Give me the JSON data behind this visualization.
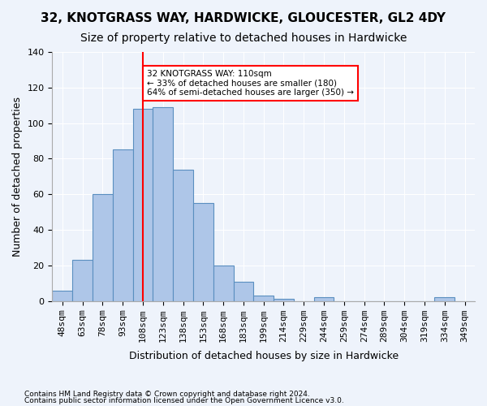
{
  "title1": "32, KNOTGRASS WAY, HARDWICKE, GLOUCESTER, GL2 4DY",
  "title2": "Size of property relative to detached houses in Hardwicke",
  "xlabel": "Distribution of detached houses by size in Hardwicke",
  "ylabel": "Number of detached properties",
  "bar_labels": [
    "48sqm",
    "63sqm",
    "78sqm",
    "93sqm",
    "108sqm",
    "123sqm",
    "138sqm",
    "153sqm",
    "168sqm",
    "183sqm",
    "199sqm",
    "214sqm",
    "229sqm",
    "244sqm",
    "259sqm",
    "274sqm",
    "289sqm",
    "304sqm",
    "319sqm",
    "334sqm",
    "349sqm"
  ],
  "bar_values": [
    6,
    23,
    60,
    85,
    108,
    109,
    74,
    55,
    20,
    11,
    3,
    1,
    0,
    2,
    0,
    0,
    0,
    0,
    0,
    2,
    0
  ],
  "bar_color": "#aec6e8",
  "bar_edge_color": "#5a8fc0",
  "property_line_x": 4.0,
  "annotation_text": "32 KNOTGRASS WAY: 110sqm\n← 33% of detached houses are smaller (180)\n64% of semi-detached houses are larger (350) →",
  "annotation_box_color": "white",
  "annotation_box_edge_color": "red",
  "line_color": "red",
  "ylim": [
    0,
    140
  ],
  "yticks": [
    0,
    20,
    40,
    60,
    80,
    100,
    120,
    140
  ],
  "footer1": "Contains HM Land Registry data © Crown copyright and database right 2024.",
  "footer2": "Contains public sector information licensed under the Open Government Licence v3.0.",
  "background_color": "#eef3fb",
  "plot_background": "#eef3fb",
  "grid_color": "white",
  "title1_fontsize": 11,
  "title2_fontsize": 10,
  "xlabel_fontsize": 9,
  "ylabel_fontsize": 9,
  "tick_fontsize": 8
}
